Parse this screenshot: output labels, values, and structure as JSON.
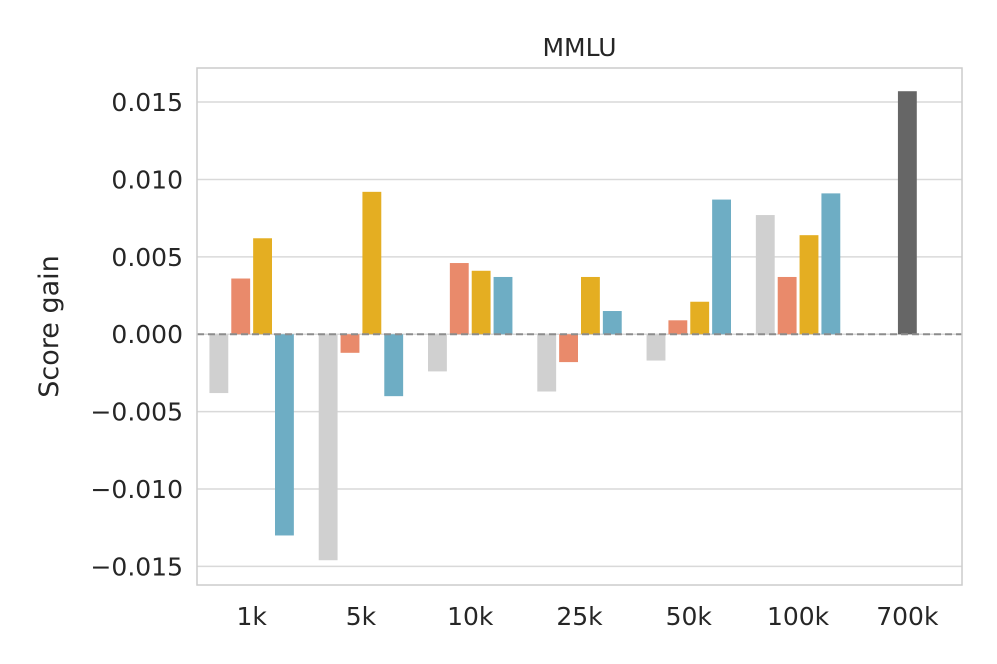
{
  "chart_data": {
    "type": "bar",
    "title": "MMLU",
    "xlabel": "",
    "ylabel": "Score gain",
    "categories": [
      "1k",
      "5k",
      "10k",
      "25k",
      "50k",
      "100k",
      "700k"
    ],
    "ylim": [
      -0.0162,
      0.0172
    ],
    "yticks": [
      0.015,
      0.01,
      0.005,
      0.0,
      -0.005,
      -0.01,
      -0.015
    ],
    "ytick_labels": [
      "0.015",
      "0.010",
      "0.005",
      "0.000",
      "−0.005",
      "−0.010",
      "−0.015"
    ],
    "grid": true,
    "legend": "none",
    "reference_line": {
      "y": 0.0,
      "style": "dashed",
      "color": "#8c8c8c"
    },
    "series": [
      {
        "color": "#d0d0d0",
        "values": [
          -0.0038,
          -0.0146,
          -0.0024,
          -0.0037,
          -0.0017,
          0.0077,
          null
        ]
      },
      {
        "color": "#e98a6b",
        "values": [
          0.0036,
          -0.0012,
          0.0046,
          -0.0018,
          0.0009,
          0.0037,
          null
        ]
      },
      {
        "color": "#e4ae22",
        "values": [
          0.0062,
          0.0092,
          0.0041,
          0.0037,
          0.0021,
          0.0064,
          null
        ]
      },
      {
        "color": "#6eadc4",
        "values": [
          -0.013,
          -0.004,
          0.0037,
          0.0015,
          0.0087,
          0.0091,
          null
        ]
      },
      {
        "color": "#666666",
        "values": [
          null,
          null,
          null,
          null,
          null,
          null,
          0.0157
        ]
      }
    ]
  }
}
